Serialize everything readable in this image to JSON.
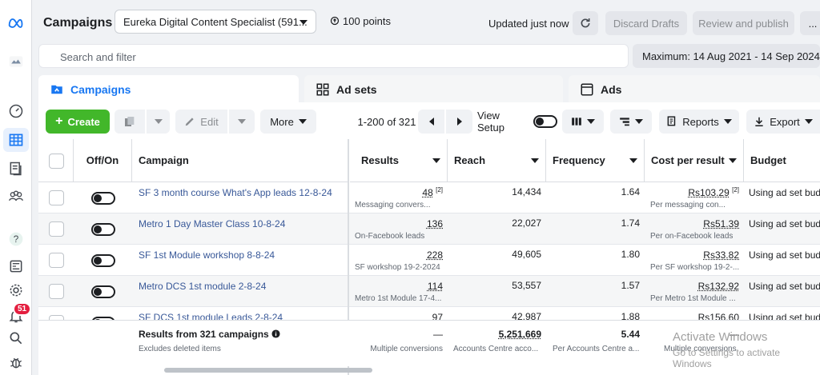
{
  "header": {
    "title": "Campaigns",
    "account": "Eureka Digital Content Specialist (591...",
    "points": "100 points",
    "updated": "Updated just now",
    "discard": "Discard Drafts",
    "review": "Review and publish",
    "more": "..."
  },
  "filter": {
    "placeholder": "Search and filter",
    "date_range": "Maximum: 14 Aug 2021 - 14 Sep 2024"
  },
  "tabs": [
    {
      "label": "Campaigns"
    },
    {
      "label": "Ad sets"
    },
    {
      "label": "Ads"
    }
  ],
  "toolbar": {
    "create": "Create",
    "edit": "Edit",
    "more": "More",
    "pagination": "1-200 of 321",
    "view_setup": "View Setup",
    "reports": "Reports",
    "export": "Export"
  },
  "notifications": {
    "count": "51"
  },
  "columns": [
    "Off/On",
    "Campaign",
    "Results",
    "Reach",
    "Frequency",
    "Cost per result",
    "Budget"
  ],
  "rows": [
    {
      "name": "SF 3 month course What's App leads 12-8-24",
      "results": "48",
      "results_mark": "[2]",
      "results_sub": "Messaging convers...",
      "reach": "14,434",
      "frequency": "1.64",
      "cost": "Rs103.29",
      "cost_mark": "[2]",
      "cost_sub": "Per messaging con...",
      "budget": "Using ad set bud"
    },
    {
      "name": "Metro 1 Day Master Class 10-8-24",
      "results": "136",
      "results_mark": "",
      "results_sub": "On-Facebook leads",
      "reach": "22,027",
      "frequency": "1.74",
      "cost": "Rs51.39",
      "cost_mark": "",
      "cost_sub": "Per on-Facebook leads",
      "budget": "Using ad set bud"
    },
    {
      "name": "SF 1st Module workshop 8-8-24",
      "results": "228",
      "results_mark": "",
      "results_sub": "SF workshop 19-2-2024",
      "reach": "49,605",
      "frequency": "1.80",
      "cost": "Rs33.82",
      "cost_mark": "",
      "cost_sub": "Per SF workshop 19-2-...",
      "budget": "Using ad set bud"
    },
    {
      "name": "Metro DCS 1st module 2-8-24",
      "results": "114",
      "results_mark": "",
      "results_sub": "Metro 1st Module 17-4...",
      "reach": "53,557",
      "frequency": "1.57",
      "cost": "Rs132.92",
      "cost_mark": "",
      "cost_sub": "Per Metro 1st Module ...",
      "budget": "Using ad set bud"
    },
    {
      "name": "SF DCS 1st module Leads 2-8-24",
      "results": "97",
      "results_mark": "",
      "results_sub": "",
      "reach": "42,987",
      "frequency": "1.88",
      "cost": "Rs156.60",
      "cost_mark": "",
      "cost_sub": "",
      "budget": "Using ad set bud"
    }
  ],
  "footer": {
    "title": "Results from 321 campaigns",
    "sub": "Excludes deleted items",
    "results": "—",
    "results_sub": "Multiple conversions",
    "reach": "5,251,669",
    "reach_sub": "Accounts Centre acco...",
    "frequency": "5.44",
    "frequency_sub": "Per Accounts Centre a...",
    "cost": "—",
    "cost_sub": "Multiple conversions"
  },
  "watermark": {
    "line1": "Activate Windows",
    "line2": "Go to Settings to activate Windows"
  },
  "colors": {
    "accent": "#1877f2",
    "create": "#42b72a",
    "badge": "#e41e3f",
    "link": "#385898"
  }
}
